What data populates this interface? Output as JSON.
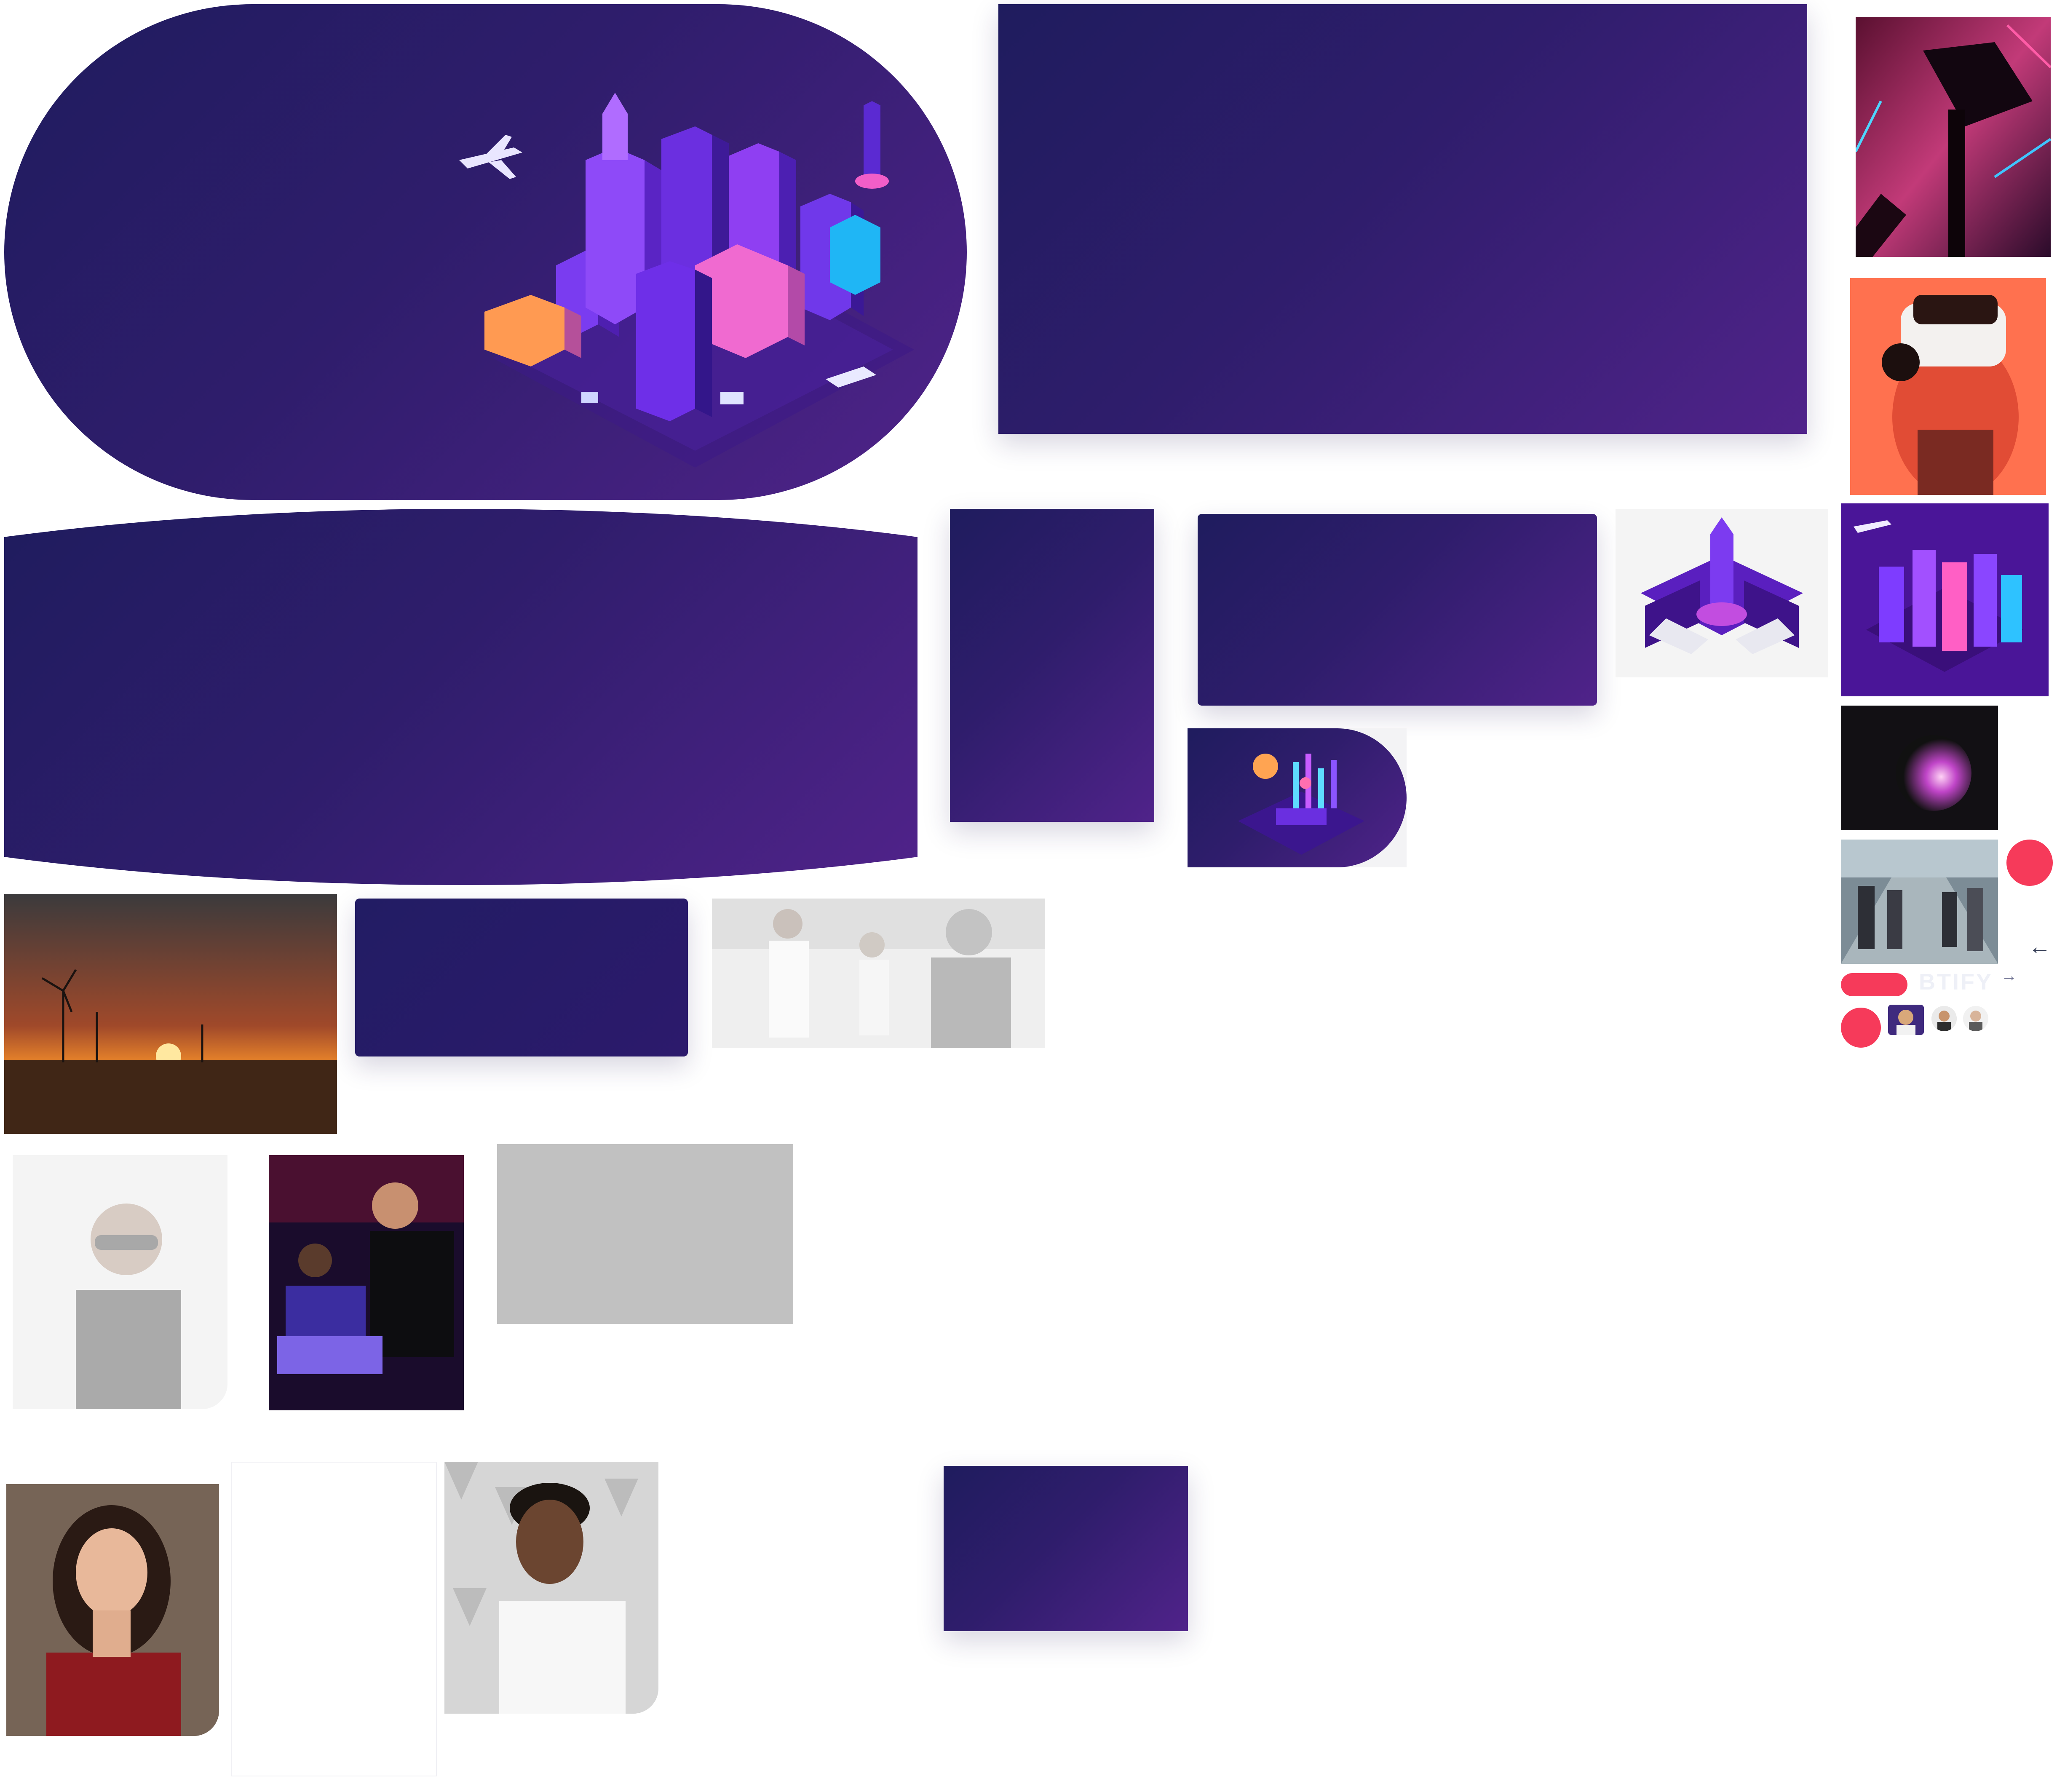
{
  "colors": {
    "brand_dark": "#1f1c5e",
    "brand_mid": "#2f1d6c",
    "brand_light": "#50238a",
    "accent": "#f63a5a",
    "placeholder_gray": "#c1c1c1"
  },
  "assets": {
    "hero_city": "isometric-smart-city-icon",
    "camera_photo": "camera-crane-photo",
    "vr_photo": "vr-headset-photo",
    "rocket_illustration": "isometric-rocket-laptops-icon",
    "city_tile": "isometric-city-icon",
    "plasma_photo": "plasma-ball-photo",
    "commuters_photo": "commuters-phones-photo",
    "analytics_illustration": "isometric-analytics-icon",
    "windmills_photo": "wind-turbines-sunset-photo",
    "meeting_photo": "office-meeting-photo",
    "sunglasses_photo": "man-sunglasses-photo",
    "coder_photo": "man-laptop-photo",
    "woman_photo": "smiling-woman-photo",
    "smiling_man_photo": "smiling-man-photo"
  },
  "slider": {
    "prev_arrow": "←",
    "next_arrow": "→",
    "ghost_label": "BTIFY"
  }
}
